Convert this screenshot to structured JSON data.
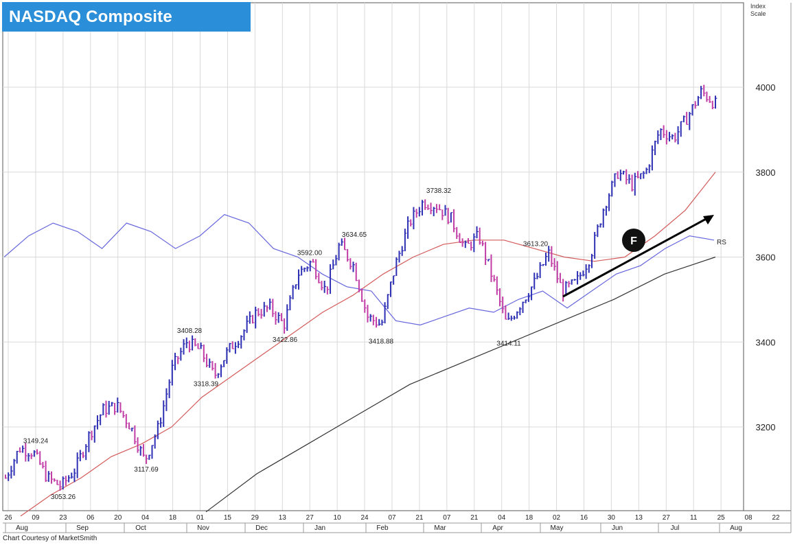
{
  "title": "NASDAQ Composite",
  "index_scale": [
    "Index",
    "Scale"
  ],
  "credit": "Chart Courtesy of MarketSmith",
  "colors": {
    "up_bar": "#2d2fb4",
    "down_bar": "#c23ca6",
    "rs_line": "#6666dd",
    "ma50": "#d35a5a",
    "ma200": "#333333",
    "grid": "#d9d9d9",
    "title_bg": "#2a8fd8"
  },
  "chart_data": {
    "type": "ohlc",
    "title": "NASDAQ Composite",
    "y_axis": {
      "label": "Index Scale",
      "ticks": [
        3200,
        3400,
        3600,
        3800,
        4000
      ],
      "range": [
        3010,
        4050
      ]
    },
    "x_axis": {
      "day_ticks": [
        "26",
        "09",
        "23",
        "06",
        "20",
        "04",
        "18",
        "01",
        "15",
        "29",
        "13",
        "27",
        "10",
        "24",
        "07",
        "21",
        "07",
        "21",
        "04",
        "18",
        "02",
        "16",
        "30",
        "13",
        "27",
        "11",
        "25",
        "08",
        "22"
      ],
      "month_labels": [
        "Aug",
        "Sep",
        "Oct",
        "Nov",
        "Dec",
        "Jan",
        "Feb",
        "Mar",
        "Apr",
        "May",
        "Jun",
        "Jul",
        "Aug"
      ]
    },
    "price_path": [
      3080,
      3150,
      3140,
      3080,
      3060,
      3100,
      3180,
      3240,
      3250,
      3200,
      3120,
      3200,
      3340,
      3400,
      3380,
      3320,
      3380,
      3420,
      3470,
      3480,
      3440,
      3560,
      3590,
      3520,
      3630,
      3580,
      3460,
      3440,
      3580,
      3680,
      3730,
      3720,
      3690,
      3620,
      3650,
      3550,
      3440,
      3490,
      3540,
      3610,
      3520,
      3540,
      3600,
      3720,
      3800,
      3770,
      3800,
      3900,
      3880,
      3930,
      3990,
      3960
    ],
    "ma50_path": [
      2990,
      3040,
      3080,
      3130,
      3160,
      3200,
      3270,
      3320,
      3370,
      3420,
      3470,
      3510,
      3560,
      3600,
      3630,
      3640,
      3640,
      3620,
      3600,
      3590,
      3600,
      3650,
      3710,
      3800
    ],
    "ma200_path": [
      3000,
      3090,
      3160,
      3230,
      3300,
      3350,
      3400,
      3450,
      3500,
      3560,
      3600
    ],
    "rs_path": [
      3600,
      3650,
      3680,
      3660,
      3620,
      3680,
      3660,
      3620,
      3650,
      3700,
      3680,
      3620,
      3600,
      3560,
      3530,
      3520,
      3450,
      3440,
      3460,
      3480,
      3470,
      3500,
      3520,
      3480,
      3520,
      3560,
      3580,
      3620,
      3650,
      3640
    ],
    "annotations": [
      {
        "text": "3149.24",
        "x": "Aug",
        "y": 3149.24
      },
      {
        "text": "3053.26",
        "x": "Aug-23",
        "y": 3053.26
      },
      {
        "text": "3117.69",
        "x": "Oct-04",
        "y": 3117.69
      },
      {
        "text": "3408.28",
        "x": "Oct-18",
        "y": 3408.28
      },
      {
        "text": "3318.39",
        "x": "Nov-01",
        "y": 3318.39
      },
      {
        "text": "3422.86",
        "x": "Dec-13",
        "y": 3422.86
      },
      {
        "text": "3592.00",
        "x": "Dec-27",
        "y": 3592.0
      },
      {
        "text": "3634.65",
        "x": "Jan-10",
        "y": 3634.65
      },
      {
        "text": "3418.88",
        "x": "Jan-24",
        "y": 3418.88
      },
      {
        "text": "3738.32",
        "x": "Feb-21",
        "y": 3738.32
      },
      {
        "text": "3613.20",
        "x": "Apr-18",
        "y": 3613.2
      },
      {
        "text": "3414.11",
        "x": "Apr-04",
        "y": 3414.11
      }
    ],
    "rs_label": "RS",
    "marker_label": "F",
    "grid": true
  }
}
